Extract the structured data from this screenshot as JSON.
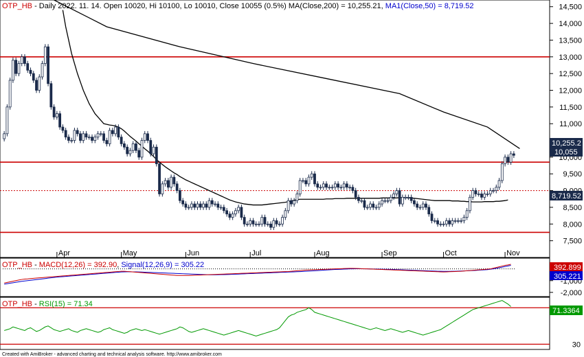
{
  "chart_data": [
    {
      "type": "candlestick",
      "panel": "price",
      "title_parts": {
        "ticker": "OTP_HB",
        "info": " - Daily 2022. 11. 14. Open 10020, Hi 10100, Lo 10010, Close 10055 (0.5%) MA(Close,200) = 10,255.21, ",
        "ma50_text": "MA1(Close,50) = 8,719.52"
      },
      "ylim": [
        7000,
        14700
      ],
      "y_ticks": [
        7500,
        8000,
        8500,
        9000,
        9500,
        10000,
        10500,
        11000,
        11500,
        12000,
        12500,
        13000,
        13500,
        14000,
        14500
      ],
      "y_tick_labels": [
        "7,500",
        "8,000",
        "8,500",
        "9,000",
        "9,500",
        "10,000",
        "10,500",
        "11,000",
        "11,500",
        "12,000",
        "12,500",
        "13,000",
        "13,500",
        "14,000",
        "14,500"
      ],
      "x_month_labels": [
        "Apr",
        "May",
        "Jun",
        "Jul",
        "Aug",
        "Sep",
        "Oct",
        "Nov"
      ],
      "x_month_index": [
        18,
        40,
        62,
        84,
        106,
        129,
        150,
        171
      ],
      "horizontal_lines": [
        {
          "y": 13000,
          "color": "#cc0000",
          "style": "solid"
        },
        {
          "y": 9850,
          "color": "#cc0000",
          "style": "solid"
        },
        {
          "y": 9000,
          "color": "#cc0000",
          "style": "dotted"
        },
        {
          "y": 7750,
          "color": "#cc0000",
          "style": "solid"
        }
      ],
      "closes": [
        10700,
        11500,
        12300,
        12900,
        12500,
        12800,
        13000,
        12800,
        12600,
        12500,
        12300,
        12000,
        12400,
        12800,
        13300,
        12200,
        11500,
        11200,
        11300,
        10900,
        10800,
        10600,
        10500,
        10500,
        10800,
        10700,
        10500,
        10700,
        10600,
        10600,
        10500,
        10600,
        10700,
        10700,
        10500,
        10400,
        10800,
        10700,
        10900,
        10600,
        10400,
        10300,
        10100,
        10200,
        10400,
        10200,
        10000,
        10500,
        10700,
        10500,
        10100,
        10300,
        9800,
        8900,
        9200,
        9300,
        9100,
        9400,
        9200,
        9000,
        8700,
        8600,
        8500,
        8500,
        8600,
        8500,
        8600,
        8500,
        8600,
        8500,
        8700,
        8600,
        8600,
        8500,
        8500,
        8400,
        8300,
        8200,
        8300,
        8400,
        8500,
        8200,
        8000,
        8000,
        8100,
        8000,
        8000,
        8000,
        8200,
        8000,
        8000,
        7900,
        8100,
        8000,
        8000,
        8200,
        8400,
        8700,
        8600,
        8700,
        8900,
        9300,
        9300,
        9200,
        9400,
        9500,
        9200,
        9100,
        9100,
        9200,
        9100,
        9100,
        9100,
        9200,
        9100,
        9100,
        9200,
        9100,
        9100,
        9000,
        8800,
        8700,
        8700,
        8500,
        8500,
        8600,
        8500,
        8500,
        8600,
        8700,
        8700,
        8700,
        8800,
        8900,
        9000,
        8600,
        8800,
        8800,
        8800,
        8700,
        8600,
        8500,
        8500,
        8600,
        8500,
        8300,
        8100,
        8100,
        8000,
        8000,
        8000,
        8100,
        8000,
        8100,
        8100,
        8100,
        8100,
        8200,
        8400,
        8800,
        9000,
        8900,
        8900,
        8800,
        8900,
        8900,
        9000,
        9000,
        9100,
        9300,
        9800,
        10000,
        9850,
        10100,
        10055
      ],
      "ma50": [
        null,
        null,
        null,
        null,
        null,
        null,
        null,
        null,
        null,
        null,
        null,
        null,
        null,
        null,
        null,
        null,
        null,
        null,
        null,
        null,
        14400,
        13900,
        13500,
        13100,
        12800,
        12500,
        12250,
        12000,
        11800,
        11600,
        11450,
        11300,
        11200,
        11100,
        11000,
        10980,
        10960,
        10950,
        10930,
        10900,
        10850,
        10780,
        10700,
        10620,
        10550,
        10480,
        10400,
        10330,
        10250,
        10180,
        10100,
        10020,
        9930,
        9850,
        9780,
        9710,
        9650,
        9590,
        9530,
        9480,
        9420,
        9370,
        9320,
        9280,
        9240,
        9200,
        9160,
        9120,
        9080,
        9040,
        9000,
        8960,
        8920,
        8880,
        8840,
        8800,
        8760,
        8720,
        8690,
        8660,
        8640,
        8620,
        8600,
        8590,
        8580,
        8570,
        8570,
        8570,
        8570,
        8580,
        8590,
        8600,
        8610,
        8620,
        8630,
        8640,
        8650,
        8670,
        8690,
        8710,
        8730,
        8740,
        8740,
        8740,
        8740,
        8740,
        8740,
        8740,
        8740,
        8740,
        8750,
        8750,
        8750,
        8760,
        8760,
        8760,
        8760,
        8770,
        8770,
        8770,
        8770,
        8770,
        8770,
        8770,
        8770,
        8770,
        8770,
        8770,
        8770,
        8780,
        8780,
        8780,
        8780,
        8780,
        8780,
        8790,
        8790,
        8790,
        8780,
        8780,
        8770,
        8760,
        8750,
        8740,
        8730,
        8720,
        8710,
        8700,
        8700,
        8700,
        8700,
        8700,
        8700,
        8690,
        8690,
        8690,
        8680,
        8680,
        8670,
        8670,
        8660,
        8660,
        8660,
        8660,
        8670,
        8670,
        8670,
        8670,
        8680,
        8680,
        8690,
        8700,
        8720
      ],
      "ma200_points": [
        [
          17,
          14700
        ],
        [
          35,
          13900
        ],
        [
          60,
          13300
        ],
        [
          85,
          12800
        ],
        [
          110,
          12350
        ],
        [
          135,
          11900
        ],
        [
          150,
          11350
        ],
        [
          165,
          10900
        ],
        [
          176,
          10255
        ]
      ],
      "labels": {
        "ma200_tag": "10,255.2",
        "close_tag": "10,055",
        "ma50_tag": "8,719.52"
      },
      "colors": {
        "ticker": "#cc0000",
        "ma50": "#0000cc",
        "bull_candle": "#ffffff",
        "bear_candle": "#1a2a4a",
        "ma_line": "#000000",
        "hline": "#cc0000"
      }
    },
    {
      "type": "line",
      "panel": "macd",
      "title_parts": {
        "ticker": "OTP_HB",
        "sep": " - ",
        "macd_text": "MACD(12,26) = 392.90",
        "sep2": ", ",
        "signal_text": "Signal(12,26,9) = 305.22"
      },
      "y_ticks": [
        -1000,
        -2000
      ],
      "y_tick_labels": [
        "-1,000",
        "-2,000"
      ],
      "labels": {
        "macd_tag": "392.899",
        "signal_tag": "305.221"
      },
      "macd": [
        -1200,
        -1150,
        -1100,
        -1050,
        -1000,
        -950,
        -900,
        -870,
        -850,
        -820,
        -800,
        -780,
        -760,
        -740,
        -720,
        -700,
        -680,
        -660,
        -640,
        -620,
        -600,
        -580,
        -560,
        -540,
        -520,
        -500,
        -480,
        -460,
        -440,
        -420,
        -400,
        -380,
        -360,
        -340,
        -320,
        -300,
        -280,
        -260,
        -240,
        -220,
        -200,
        -200,
        -220,
        -240,
        -260,
        -280,
        -300,
        -320,
        -340,
        -360,
        -380,
        -400,
        -420,
        -440,
        -460,
        -480,
        -500,
        -520,
        -540,
        -560,
        -560,
        -560,
        -560,
        -560,
        -550,
        -540,
        -530,
        -520,
        -510,
        -500,
        -490,
        -480,
        -470,
        -460,
        -450,
        -440,
        -430,
        -420,
        -410,
        -400,
        -390,
        -380,
        -370,
        -360,
        -350,
        -340,
        -330,
        -320,
        -310,
        -300,
        -290,
        -280,
        -270,
        -260,
        -250,
        -240,
        -230,
        -220,
        -200,
        -180,
        -160,
        -140,
        -120,
        -100,
        -90,
        -80,
        -70,
        -60,
        -50,
        -40,
        -30,
        -20,
        -10,
        0,
        10,
        20,
        30,
        40,
        50,
        50,
        40,
        30,
        20,
        10,
        0,
        -10,
        -20,
        -30,
        -40,
        -50,
        -60,
        -70,
        -80,
        -90,
        -100,
        -110,
        -120,
        -130,
        -140,
        -150,
        -160,
        -170,
        -180,
        -190,
        -200,
        -210,
        -220,
        -230,
        -240,
        -250,
        -260,
        -250,
        -240,
        -230,
        -220,
        -210,
        -200,
        -180,
        -160,
        -140,
        -120,
        -100,
        -80,
        -60,
        -40,
        -20,
        0,
        60,
        120,
        180,
        240,
        300,
        340,
        392.9
      ],
      "signal": [
        -1300,
        -1260,
        -1220,
        -1180,
        -1140,
        -1100,
        -1060,
        -1030,
        -1000,
        -970,
        -940,
        -910,
        -880,
        -850,
        -820,
        -790,
        -760,
        -730,
        -700,
        -680,
        -660,
        -640,
        -620,
        -600,
        -580,
        -560,
        -540,
        -520,
        -500,
        -480,
        -460,
        -440,
        -420,
        -400,
        -380,
        -360,
        -340,
        -320,
        -300,
        -280,
        -260,
        -250,
        -245,
        -245,
        -250,
        -255,
        -260,
        -270,
        -280,
        -290,
        -300,
        -310,
        -320,
        -330,
        -340,
        -350,
        -360,
        -370,
        -380,
        -390,
        -400,
        -410,
        -420,
        -430,
        -440,
        -450,
        -460,
        -470,
        -480,
        -490,
        -500,
        -500,
        -500,
        -495,
        -490,
        -485,
        -480,
        -470,
        -460,
        -450,
        -440,
        -430,
        -420,
        -410,
        -400,
        -390,
        -380,
        -370,
        -360,
        -350,
        -340,
        -330,
        -320,
        -310,
        -300,
        -290,
        -280,
        -270,
        -260,
        -250,
        -240,
        -230,
        -215,
        -200,
        -185,
        -170,
        -155,
        -140,
        -125,
        -110,
        -95,
        -80,
        -65,
        -50,
        -40,
        -30,
        -20,
        -10,
        0,
        5,
        10,
        10,
        10,
        5,
        0,
        -5,
        -10,
        -15,
        -20,
        -25,
        -30,
        -35,
        -40,
        -50,
        -60,
        -70,
        -80,
        -90,
        -100,
        -110,
        -120,
        -130,
        -140,
        -150,
        -160,
        -170,
        -180,
        -190,
        -200,
        -205,
        -210,
        -210,
        -210,
        -205,
        -200,
        -190,
        -180,
        -170,
        -160,
        -150,
        -140,
        -125,
        -110,
        -95,
        -80,
        -60,
        -30,
        0,
        50,
        100,
        150,
        200,
        250,
        305.22
      ],
      "colors": {
        "ticker": "#cc0000",
        "macd": "#cc0000",
        "signal": "#0000cc",
        "hist": "#000000"
      }
    },
    {
      "type": "line",
      "panel": "rsi",
      "title_parts": {
        "ticker": "OTP_HB",
        "sep": " - ",
        "rsi_text": "RSI(15) = 71.34"
      },
      "ylim": [
        25,
        80
      ],
      "y_ticks": [
        30
      ],
      "y_tick_labels": [
        "30"
      ],
      "horizontal_lines": [
        {
          "y": 70,
          "color": "#cc0000"
        },
        {
          "y": 30,
          "color": "#cc0000"
        }
      ],
      "labels": {
        "rsi_tag": "71.3364"
      },
      "rsi": [
        45,
        46,
        47,
        49,
        48,
        47,
        46,
        45,
        47,
        48,
        46,
        44,
        45,
        47,
        49,
        50,
        48,
        46,
        45,
        44,
        45,
        46,
        47,
        45,
        44,
        43,
        45,
        46,
        47,
        46,
        45,
        44,
        43,
        44,
        46,
        47,
        48,
        46,
        45,
        44,
        43,
        42,
        43,
        45,
        46,
        47,
        46,
        45,
        46,
        45,
        44,
        43,
        42,
        41,
        42,
        43,
        44,
        45,
        46,
        47,
        49,
        48,
        46,
        44,
        43,
        44,
        45,
        46,
        47,
        46,
        45,
        44,
        43,
        42,
        41,
        40,
        41,
        42,
        43,
        44,
        45,
        44,
        43,
        42,
        41,
        40,
        39,
        40,
        41,
        42,
        43,
        44,
        45,
        46,
        48,
        52,
        56,
        60,
        62,
        63,
        65,
        66,
        67,
        68,
        70,
        68,
        65,
        64,
        63,
        62,
        61,
        60,
        59,
        58,
        57,
        56,
        55,
        54,
        53,
        52,
        51,
        50,
        49,
        48,
        47,
        46,
        47,
        48,
        47,
        46,
        45,
        46,
        47,
        46,
        45,
        44,
        43,
        44,
        45,
        44,
        43,
        42,
        41,
        40,
        41,
        42,
        43,
        44,
        45,
        46,
        48,
        50,
        52,
        54,
        56,
        58,
        60,
        62,
        64,
        66,
        68,
        69,
        70,
        71,
        72,
        73,
        74,
        75,
        76,
        77,
        78,
        76,
        74,
        71.34
      ],
      "colors": {
        "ticker": "#cc0000",
        "rsi": "#009900",
        "hline": "#cc0000"
      }
    }
  ],
  "footer": {
    "credit": "Created with AmiBroker - advanced charting and technical analysis software. http://www.amibroker.com"
  }
}
